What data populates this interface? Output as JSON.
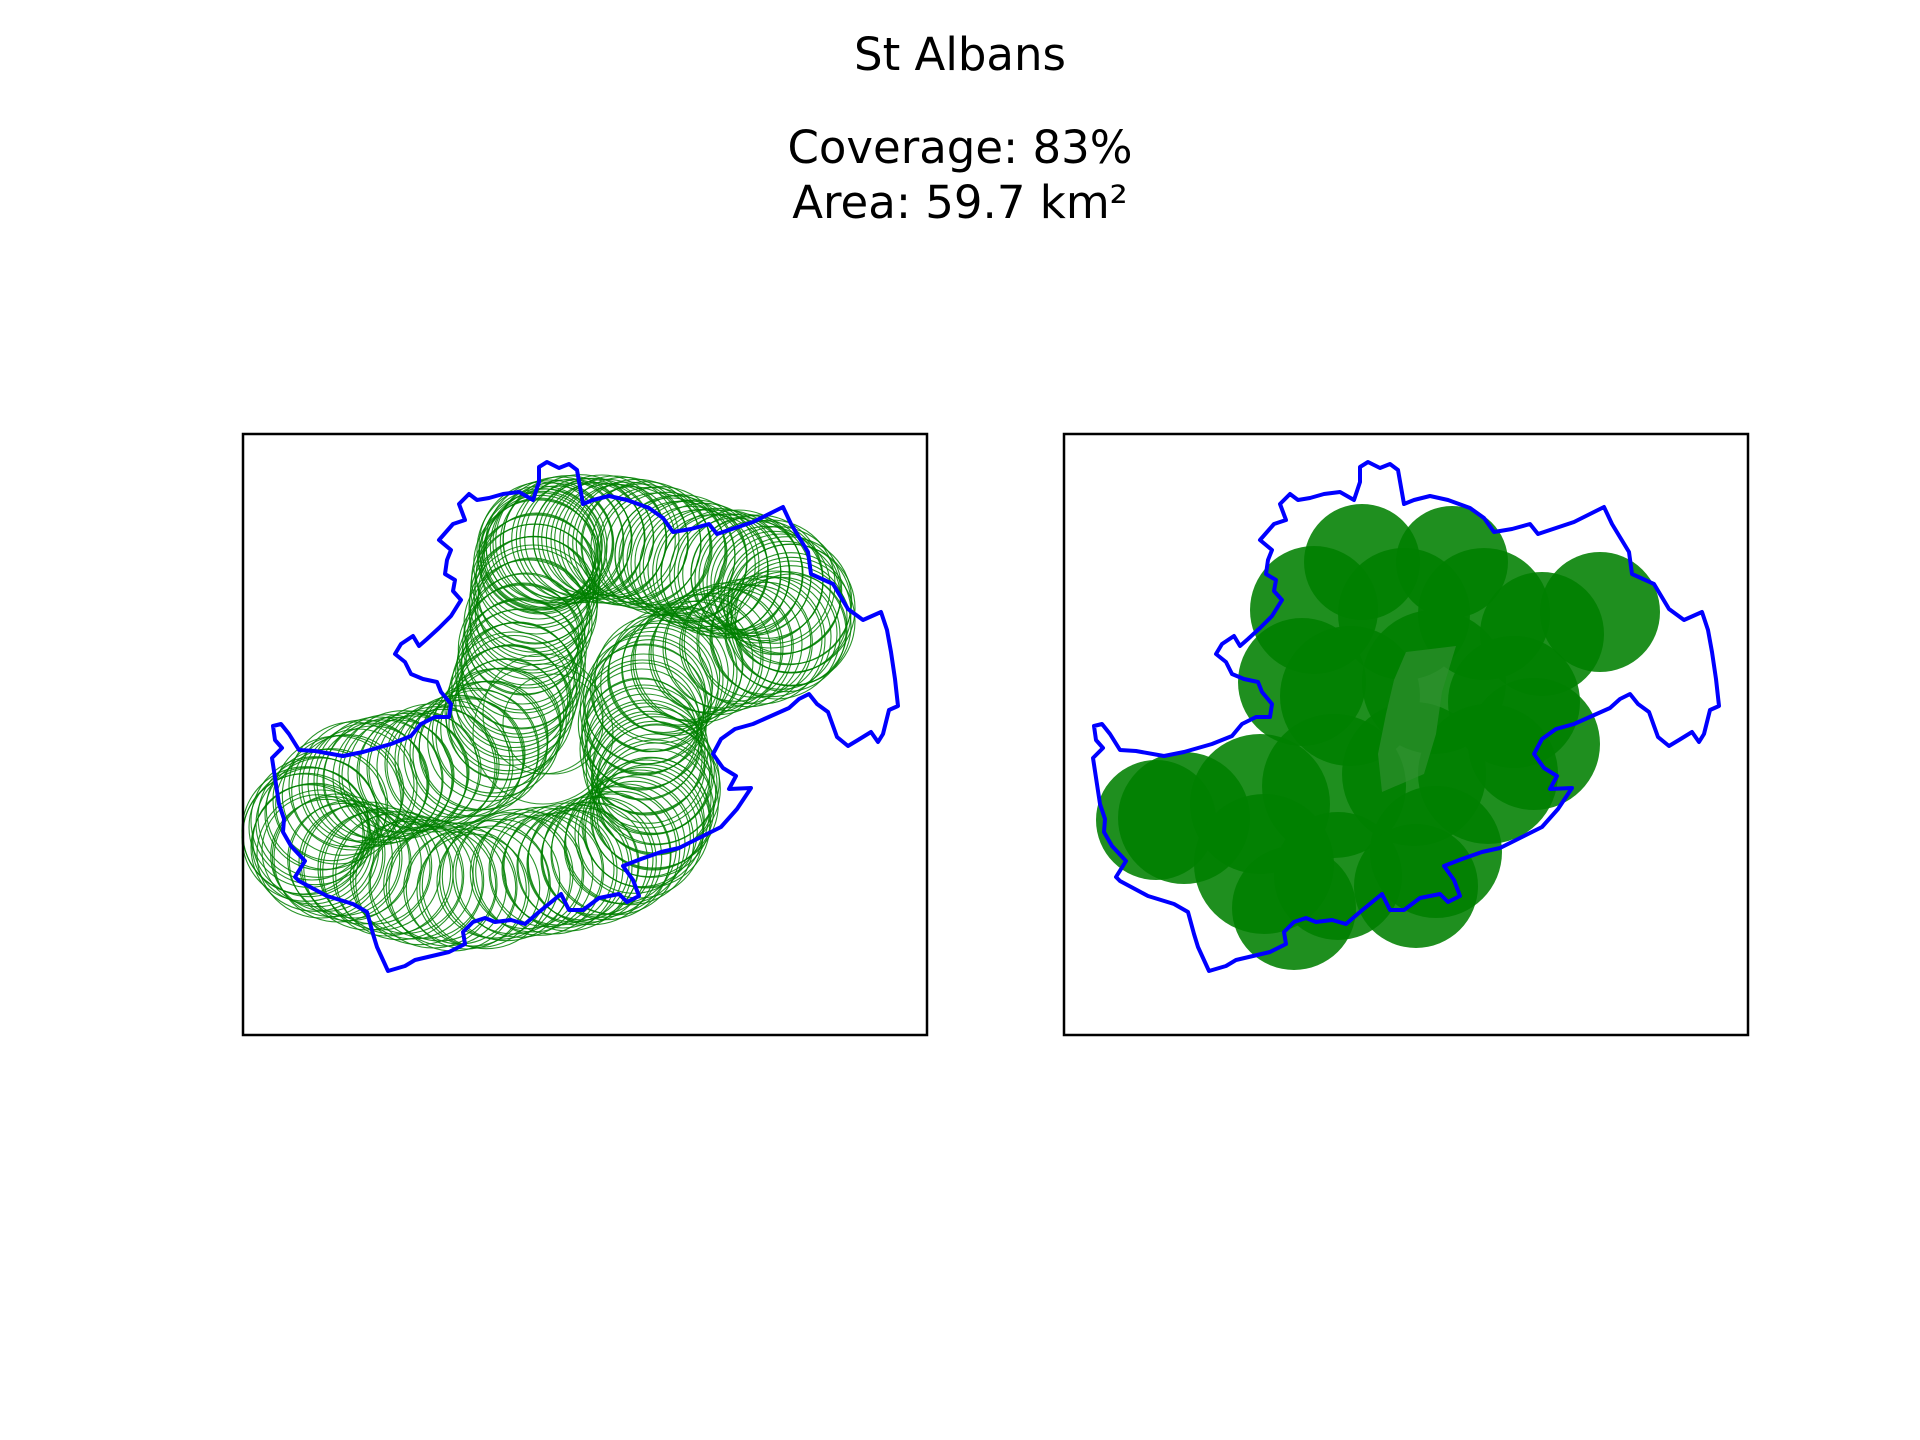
{
  "figure": {
    "title": "St Albans",
    "coverage_line": "Coverage: 83%",
    "area_line": "Area: 59.7 km²"
  },
  "colors": {
    "boundary": "#0000ff",
    "coverage": "#008000",
    "frame": "#000000",
    "background": "#ffffff"
  },
  "maps": [
    {
      "id": "left",
      "style": "circle-outlines"
    },
    {
      "id": "right",
      "style": "filled-circles"
    }
  ]
}
